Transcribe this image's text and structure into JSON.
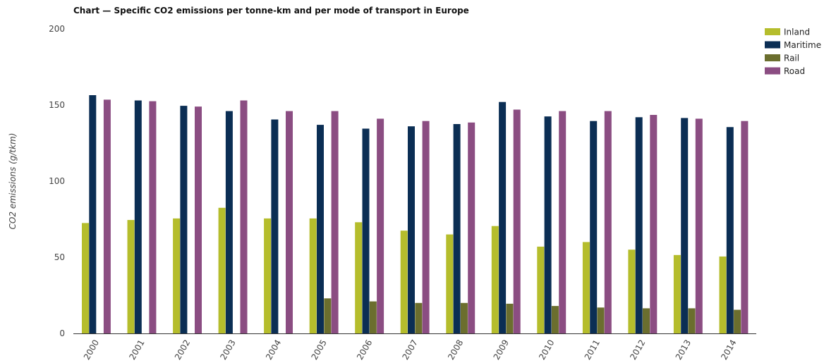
{
  "chart_data": {
    "type": "bar",
    "title": "Chart — Specific CO2 emissions per tonne-km and per mode of transport in Europe",
    "xlabel": "",
    "ylabel": "CO2 emissions (g/tkm)",
    "ylim": [
      0,
      200
    ],
    "yticks": [
      0,
      50,
      100,
      150,
      200
    ],
    "grid": false,
    "legend_position": "top-right",
    "categories": [
      "2000",
      "2001",
      "2002",
      "2003",
      "2004",
      "2005",
      "2006",
      "2007",
      "2008",
      "2009",
      "2010",
      "2011",
      "2012",
      "2013",
      "2014"
    ],
    "series": [
      {
        "name": "Inland",
        "color": "#b5bd2c",
        "values": [
          72.5,
          74.5,
          75.5,
          82.5,
          75.5,
          75.5,
          73,
          67.5,
          65,
          70.5,
          57,
          60,
          55,
          51.5,
          50.5
        ]
      },
      {
        "name": "Maritime",
        "color": "#0b2e54",
        "values": [
          156.5,
          153,
          149.5,
          146,
          140.5,
          137,
          134.5,
          136,
          137.5,
          152,
          142.5,
          139.5,
          142,
          141.5,
          135.5
        ]
      },
      {
        "name": "Rail",
        "color": "#6b6e2e",
        "values": [
          null,
          null,
          null,
          null,
          null,
          23,
          21,
          20,
          20,
          19.5,
          18,
          17,
          16.5,
          16.5,
          15.5
        ]
      },
      {
        "name": "Road",
        "color": "#8b4d82",
        "values": [
          153.5,
          152.5,
          149,
          153,
          146,
          146,
          141,
          139.5,
          138.5,
          147,
          146,
          146,
          143.5,
          141,
          139.5
        ]
      }
    ]
  }
}
